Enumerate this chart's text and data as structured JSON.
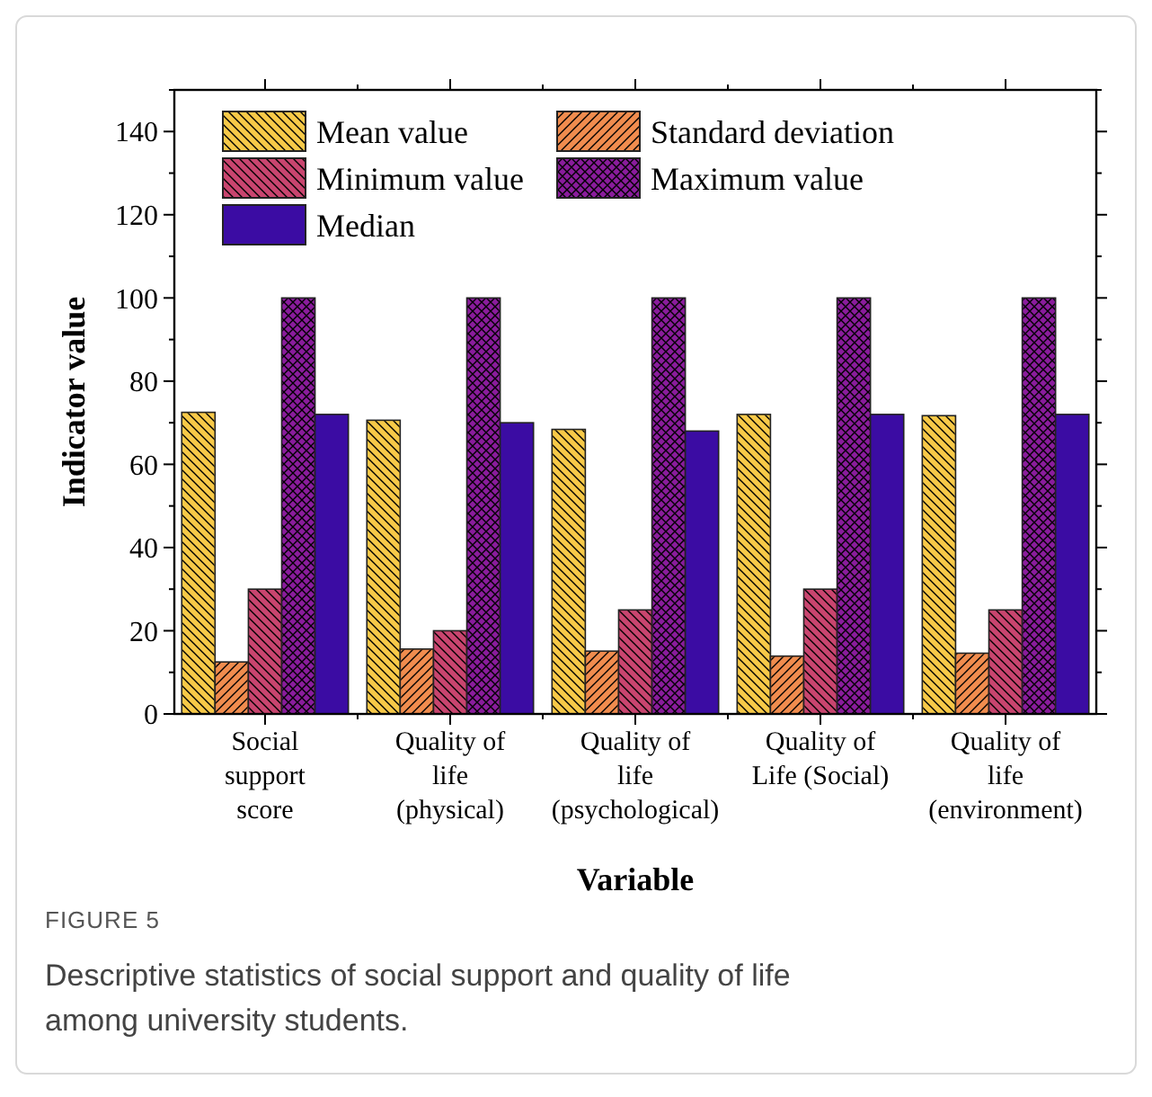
{
  "chart_data": {
    "type": "bar",
    "xlabel": "Variable",
    "ylabel": "Indicator value",
    "categories": [
      "Social\nsupport\nscore",
      "Quality of\nlife\n(physical)",
      "Quality of\nlife\n(psychological)",
      "Quality of\nLife (Social)",
      "Quality of\nlife\n(environment)"
    ],
    "series": [
      {
        "name": "Mean value",
        "color": "#f7c948",
        "values": [
          72.5,
          70.6,
          68.4,
          72.0,
          71.7
        ]
      },
      {
        "name": "Standard deviation",
        "color": "#f08c4e",
        "values": [
          12.5,
          15.6,
          15.1,
          13.9,
          14.6
        ]
      },
      {
        "name": "Minimum value",
        "color": "#c9456f",
        "values": [
          30,
          20,
          25,
          30,
          25
        ]
      },
      {
        "name": "Maximum value",
        "color": "#8a1c9c",
        "values": [
          100,
          100,
          100,
          100,
          100
        ]
      },
      {
        "name": "Median",
        "color": "#3b0ca3",
        "values": [
          72,
          70,
          68,
          72,
          72
        ]
      }
    ],
    "ylim": [
      0,
      150
    ],
    "yticks": [
      0,
      20,
      40,
      60,
      80,
      100,
      120,
      140
    ],
    "grid": false,
    "legend": "top left",
    "annotations": [
      "FIGURE 5",
      "Descriptive statistics of social support and quality of life among university students."
    ]
  }
}
